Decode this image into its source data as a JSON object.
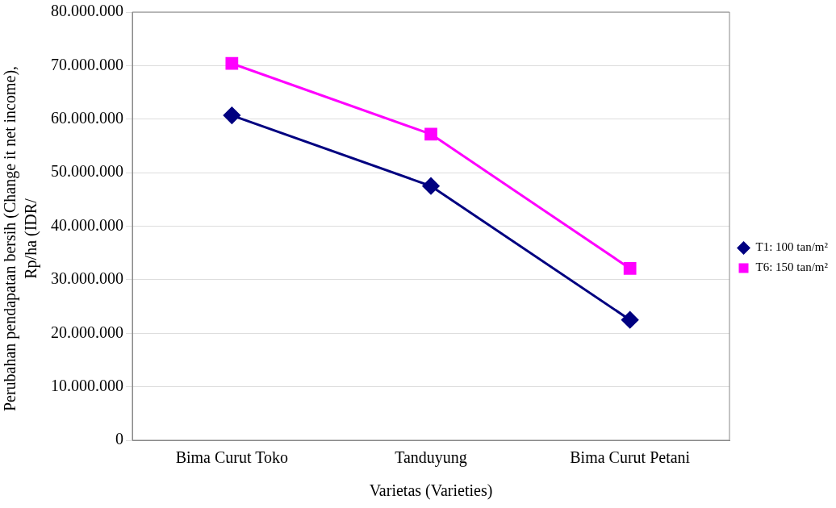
{
  "chart_data": {
    "type": "line",
    "xlabel": "Varietas (Varieties)",
    "ylabel": "Perubahan pendapatan bersih (Change it net income), Rp/ha (IDR/",
    "categories": [
      "Bima Curut Toko",
      "Tanduyung",
      "Bima Curut Petani"
    ],
    "series": [
      {
        "name": "T1: 100 tan/m²",
        "color": "#000080",
        "marker": "diamond",
        "values": [
          60700000,
          47500000,
          22500000
        ]
      },
      {
        "name": "T6: 150 tan/m²",
        "color": "#ff00ff",
        "marker": "square",
        "values": [
          70400000,
          57200000,
          32100000
        ]
      }
    ],
    "ylim": [
      0,
      80000000
    ],
    "yticks": [
      0,
      {
        "value": 10000000,
        "label": "10.000.000"
      },
      {
        "value": 20000000,
        "label": "20.000.000"
      },
      {
        "value": 30000000,
        "label": "30.000.000"
      },
      {
        "value": 40000000,
        "label": "40.000.000"
      },
      {
        "value": 50000000,
        "label": "50.000.000"
      },
      {
        "value": 60000000,
        "label": "60.000.000"
      },
      {
        "value": 70000000,
        "label": "70.000.000"
      },
      {
        "value": 80000000,
        "label": "80.000.000"
      }
    ],
    "grid": "y",
    "legend": "right",
    "line_style": "solid"
  }
}
